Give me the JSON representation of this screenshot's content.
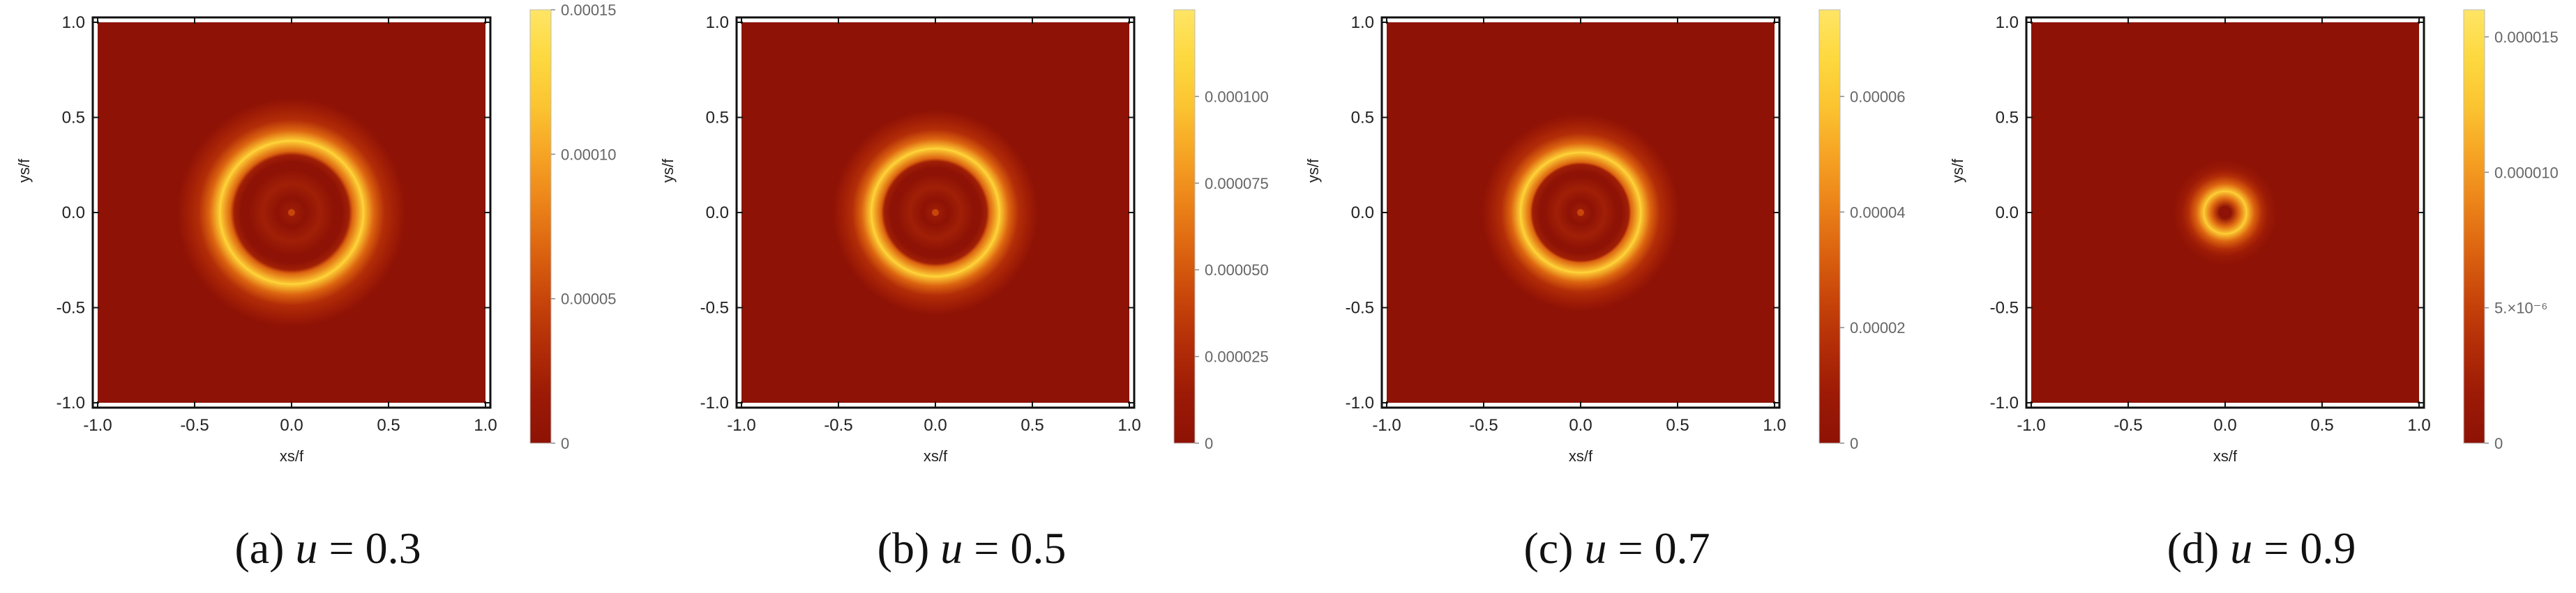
{
  "figure": {
    "colors": {
      "colormap": [
        "#8e1205",
        "#9c1a06",
        "#b22d07",
        "#c8450a",
        "#dc6410",
        "#ec8419",
        "#f6a424",
        "#fbc431",
        "#fdd93f",
        "#ffe566"
      ],
      "background": "#8e1205",
      "frame": "#111111"
    },
    "x_ticks": [
      "-1.0",
      "-0.5",
      "0.0",
      "0.5",
      "1.0"
    ],
    "y_ticks": [
      "1.0",
      "0.5",
      "0.0",
      "-0.5",
      "-1.0"
    ],
    "xlabel": "xs/f",
    "ylabel": "ys/f"
  },
  "chart_data": [
    {
      "type": "heatmap",
      "caption_prefix": "(a)",
      "caption_var": "u",
      "caption_value": "= 0.3",
      "u": 0.3,
      "xlim": [
        -1.0,
        1.0
      ],
      "ylim": [
        -1.0,
        1.0
      ],
      "ring_radius": 0.37,
      "ring_width": 0.055,
      "center_dot": true,
      "inner_ripples": true,
      "colorbar": {
        "range": [
          0,
          0.00015
        ],
        "ticks": [
          {
            "value": 0.00015,
            "label": "0.00015"
          },
          {
            "value": 0.0001,
            "label": "0.00010"
          },
          {
            "value": 5e-05,
            "label": "0.00005"
          },
          {
            "value": 0,
            "label": "0"
          }
        ]
      }
    },
    {
      "type": "heatmap",
      "caption_prefix": "(b)",
      "caption_var": "u",
      "caption_value": "= 0.5",
      "u": 0.5,
      "xlim": [
        -1.0,
        1.0
      ],
      "ylim": [
        -1.0,
        1.0
      ],
      "ring_radius": 0.33,
      "ring_width": 0.05,
      "center_dot": true,
      "inner_ripples": true,
      "colorbar": {
        "range": [
          0,
          0.000125
        ],
        "ticks": [
          {
            "value": 0.0001,
            "label": "0.000100"
          },
          {
            "value": 7.5e-05,
            "label": "0.000075"
          },
          {
            "value": 5e-05,
            "label": "0.000050"
          },
          {
            "value": 2.5e-05,
            "label": "0.000025"
          },
          {
            "value": 0,
            "label": "0"
          }
        ]
      }
    },
    {
      "type": "heatmap",
      "caption_prefix": "(c)",
      "caption_var": "u",
      "caption_value": "= 0.7",
      "u": 0.7,
      "xlim": [
        -1.0,
        1.0
      ],
      "ylim": [
        -1.0,
        1.0
      ],
      "ring_radius": 0.31,
      "ring_width": 0.05,
      "center_dot": true,
      "inner_ripples": true,
      "colorbar": {
        "range": [
          0,
          7.5e-05
        ],
        "ticks": [
          {
            "value": 6e-05,
            "label": "0.00006"
          },
          {
            "value": 4e-05,
            "label": "0.00004"
          },
          {
            "value": 2e-05,
            "label": "0.00002"
          },
          {
            "value": 0,
            "label": "0"
          }
        ]
      }
    },
    {
      "type": "heatmap",
      "caption_prefix": "(d)",
      "caption_var": "u",
      "caption_value": "= 0.9",
      "u": 0.9,
      "xlim": [
        -1.0,
        1.0
      ],
      "ylim": [
        -1.0,
        1.0
      ],
      "ring_radius": 0.11,
      "ring_width": 0.04,
      "center_dot": false,
      "inner_ripples": false,
      "colorbar": {
        "range": [
          0,
          1.6e-05
        ],
        "ticks": [
          {
            "value": 1.5e-05,
            "label": "0.000015"
          },
          {
            "value": 1e-05,
            "label": "0.000010"
          },
          {
            "value": 5e-06,
            "label": "5.×10⁻⁶"
          },
          {
            "value": 0,
            "label": "0"
          }
        ]
      }
    }
  ]
}
